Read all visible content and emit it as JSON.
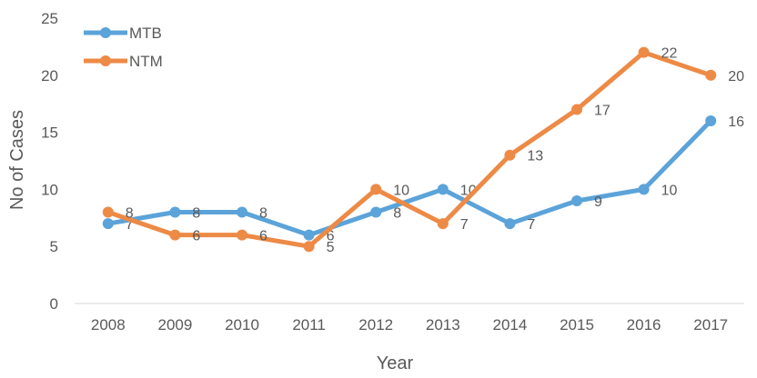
{
  "chart_data": {
    "type": "line",
    "title": "",
    "xlabel": "Year",
    "ylabel": "No of Cases",
    "categories": [
      "2008",
      "2009",
      "2010",
      "2011",
      "2012",
      "2013",
      "2014",
      "2015",
      "2016",
      "2017"
    ],
    "ylim": [
      0,
      25
    ],
    "yticks": [
      0,
      5,
      10,
      15,
      20,
      25
    ],
    "grid": false,
    "legend": "top-left",
    "series": [
      {
        "name": "MTB",
        "color": "#5ba3d9",
        "values": [
          7,
          8,
          8,
          6,
          8,
          10,
          7,
          9,
          10,
          16
        ]
      },
      {
        "name": "NTM",
        "color": "#ed8a45",
        "values": [
          8,
          6,
          6,
          5,
          10,
          7,
          13,
          17,
          22,
          20
        ]
      }
    ]
  }
}
